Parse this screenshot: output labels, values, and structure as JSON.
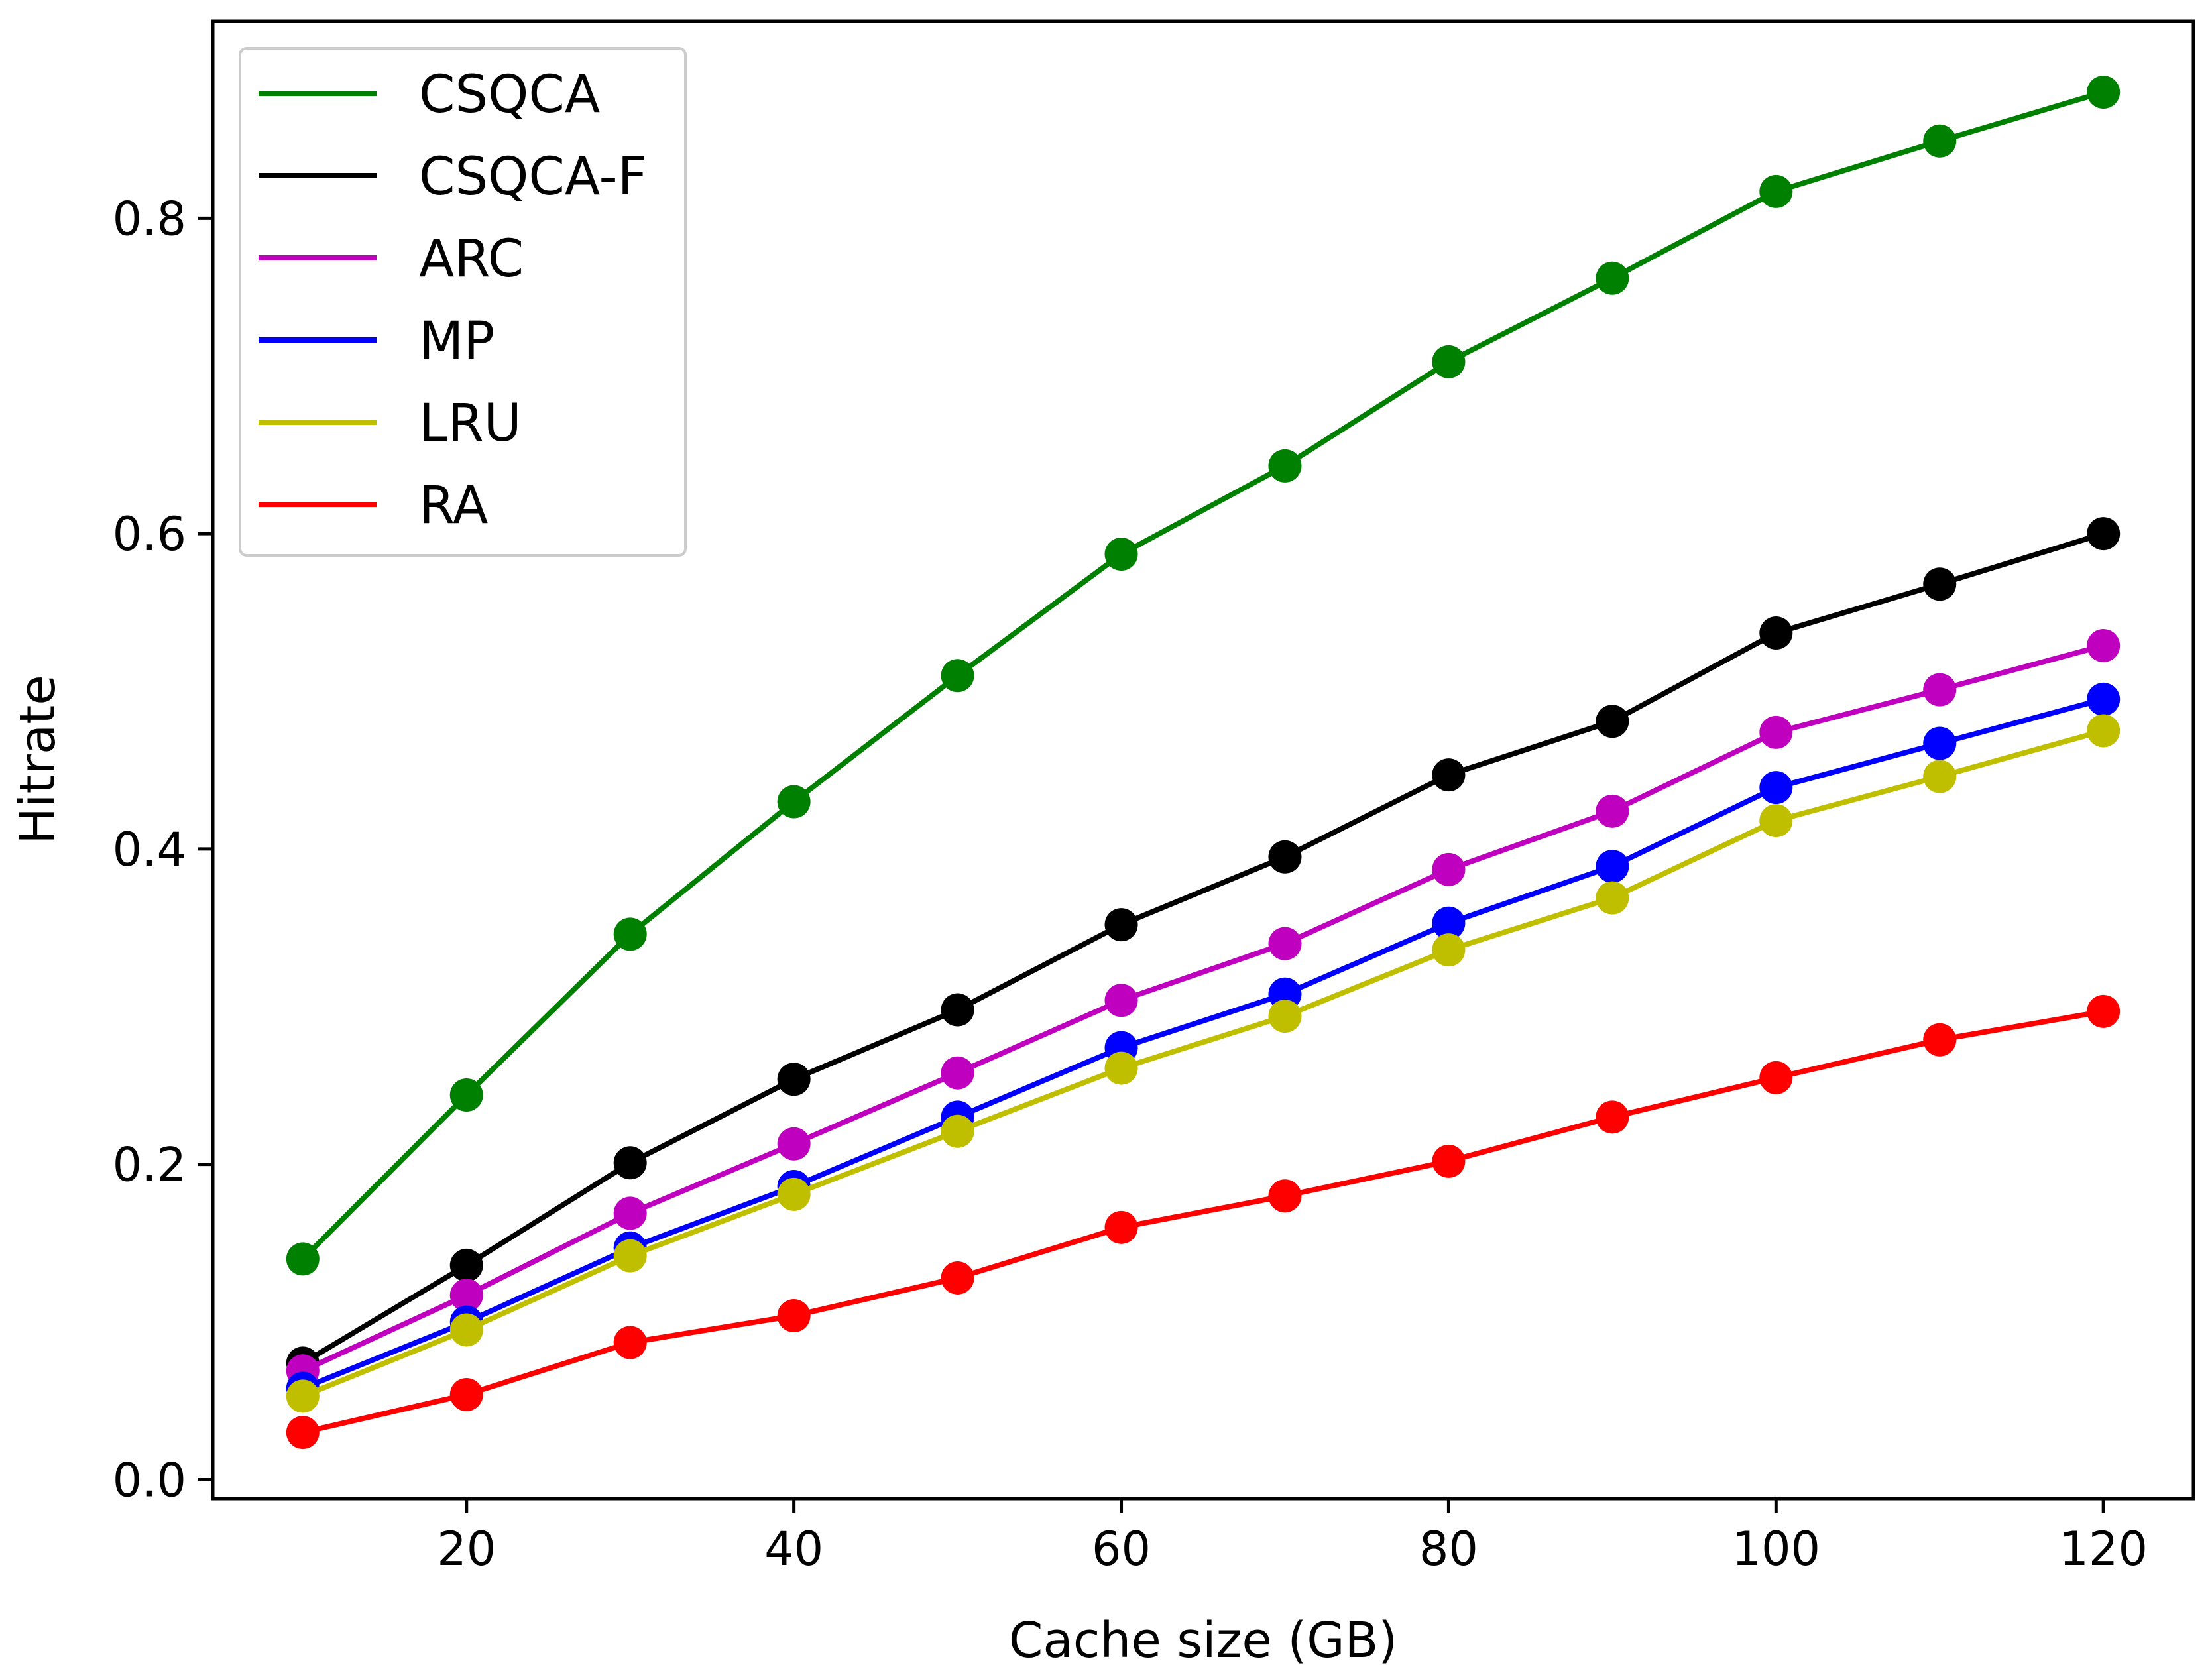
{
  "chart_data": {
    "type": "line",
    "title": "",
    "xlabel": "Cache size (GB)",
    "ylabel": "Hitrate",
    "x": [
      10,
      20,
      30,
      40,
      50,
      60,
      70,
      80,
      90,
      100,
      110,
      120
    ],
    "xlim": [
      4.5,
      125.5
    ],
    "ylim": [
      -0.012,
      0.925
    ],
    "xticks": [
      20,
      40,
      60,
      80,
      100,
      120
    ],
    "yticks": [
      0.0,
      0.2,
      0.4,
      0.6,
      0.8
    ],
    "xtick_labels": [
      "20",
      "40",
      "60",
      "80",
      "100",
      "120"
    ],
    "ytick_labels": [
      "0.0",
      "0.2",
      "0.4",
      "0.6",
      "0.8"
    ],
    "grid": false,
    "legend_position": "top-left",
    "markers": "circle",
    "series": [
      {
        "name": "CSQCA",
        "color": "#008000",
        "values": [
          0.14,
          0.244,
          0.346,
          0.43,
          0.51,
          0.587,
          0.643,
          0.709,
          0.762,
          0.817,
          0.849,
          0.88
        ]
      },
      {
        "name": "CSQCA-F",
        "color": "#000000",
        "values": [
          0.074,
          0.136,
          0.201,
          0.254,
          0.298,
          0.352,
          0.395,
          0.447,
          0.481,
          0.537,
          0.568,
          0.6
        ]
      },
      {
        "name": "ARC",
        "color": "#bf00bf",
        "values": [
          0.069,
          0.117,
          0.169,
          0.213,
          0.258,
          0.304,
          0.34,
          0.387,
          0.424,
          0.474,
          0.501,
          0.529
        ]
      },
      {
        "name": "MP",
        "color": "#0000ff",
        "values": [
          0.058,
          0.1,
          0.147,
          0.186,
          0.23,
          0.274,
          0.308,
          0.353,
          0.389,
          0.439,
          0.467,
          0.495
        ]
      },
      {
        "name": "LRU",
        "color": "#bfbf00",
        "values": [
          0.053,
          0.095,
          0.142,
          0.181,
          0.221,
          0.261,
          0.294,
          0.336,
          0.369,
          0.418,
          0.446,
          0.475
        ]
      },
      {
        "name": "RA",
        "color": "#ff0000",
        "values": [
          0.03,
          0.054,
          0.087,
          0.104,
          0.128,
          0.16,
          0.18,
          0.202,
          0.23,
          0.255,
          0.279,
          0.297
        ]
      }
    ]
  }
}
